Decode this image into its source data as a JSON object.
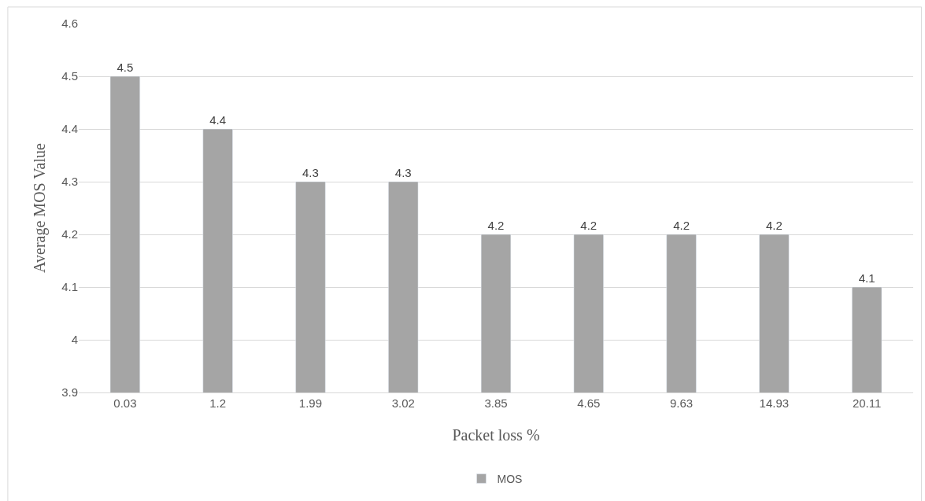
{
  "chart_data": {
    "type": "bar",
    "xlabel": "Packet loss %",
    "ylabel": "Average MOS Value",
    "categories": [
      "0.03",
      "1.2",
      "1.99",
      "3.02",
      "3.85",
      "4.65",
      "9.63",
      "14.93",
      "20.11"
    ],
    "series": [
      {
        "name": "MOS",
        "color": "#a5a5a5",
        "values": [
          4.5,
          4.4,
          4.3,
          4.3,
          4.2,
          4.2,
          4.2,
          4.2,
          4.1
        ]
      }
    ],
    "ylim": [
      3.9,
      4.6
    ],
    "yticks": [
      3.9,
      {
        "value": 4.0,
        "label": "4"
      },
      4.1,
      4.2,
      4.3,
      4.4,
      4.5,
      4.6
    ],
    "grid": "y",
    "legend": "bottom",
    "data_labels": true
  }
}
